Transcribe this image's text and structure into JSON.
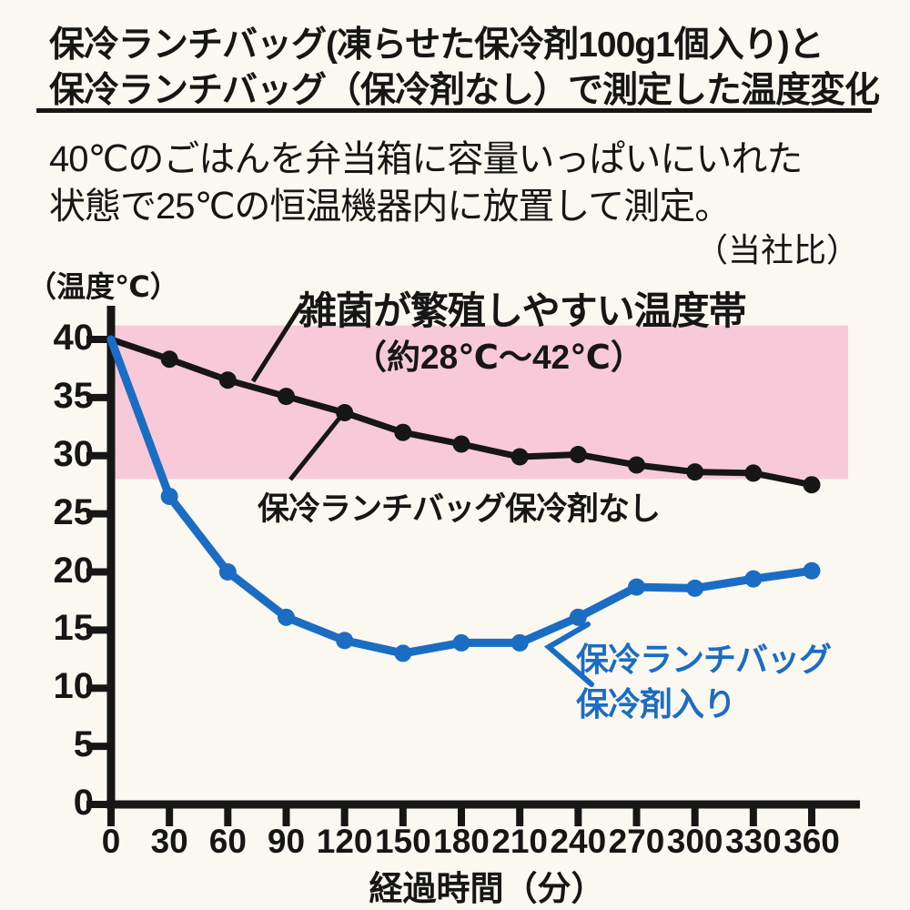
{
  "header": {
    "title_line1": "保冷ランチバッグ(凍らせた保冷剤100g1個入り)と",
    "title_line2": "保冷ランチバッグ（保冷剤なし）で測定した温度変化"
  },
  "description": {
    "line1": "40℃のごはんを弁当箱に容量いっぱいにいれた",
    "line2": "状態で25℃の恒温機器内に放置して測定。",
    "note": "（当社比）"
  },
  "chart_data": {
    "type": "line",
    "xlabel": "経過時間（分）",
    "ylabel": "（温度℃）",
    "xlim": [
      0,
      360
    ],
    "ylim": [
      0,
      40
    ],
    "grid": false,
    "x_ticks": [
      0,
      30,
      60,
      90,
      120,
      150,
      180,
      210,
      240,
      270,
      300,
      330,
      360
    ],
    "y_ticks": [
      0,
      5,
      10,
      15,
      20,
      25,
      30,
      35,
      40
    ],
    "x": [
      0,
      30,
      60,
      90,
      120,
      150,
      180,
      210,
      240,
      270,
      300,
      330,
      360
    ],
    "series": [
      {
        "name": "保冷ランチバッグ保冷剤なし",
        "color": "#161616",
        "values": [
          40,
          38.3,
          36.5,
          35.1,
          33.7,
          32.0,
          31.0,
          29.9,
          30.1,
          29.2,
          28.6,
          28.5,
          27.5
        ],
        "label_lines": [
          "保冷ランチバッグ保冷剤なし"
        ]
      },
      {
        "name": "保冷ランチバッグ保冷剤入り",
        "color": "#1b6cc3",
        "values": [
          40,
          26.5,
          20.0,
          16.1,
          14.1,
          13.0,
          13.9,
          13.9,
          16.1,
          18.7,
          18.6,
          19.4,
          20.1
        ],
        "label_lines": [
          "保冷ランチバッグ",
          "保冷剤入り"
        ]
      }
    ],
    "danger_zone": {
      "label": "雑菌が繁殖しやすい温度帯",
      "range_label": "（約28℃～42℃）",
      "min_c": 28,
      "max_c": 42,
      "color": "#f8cad9"
    }
  }
}
